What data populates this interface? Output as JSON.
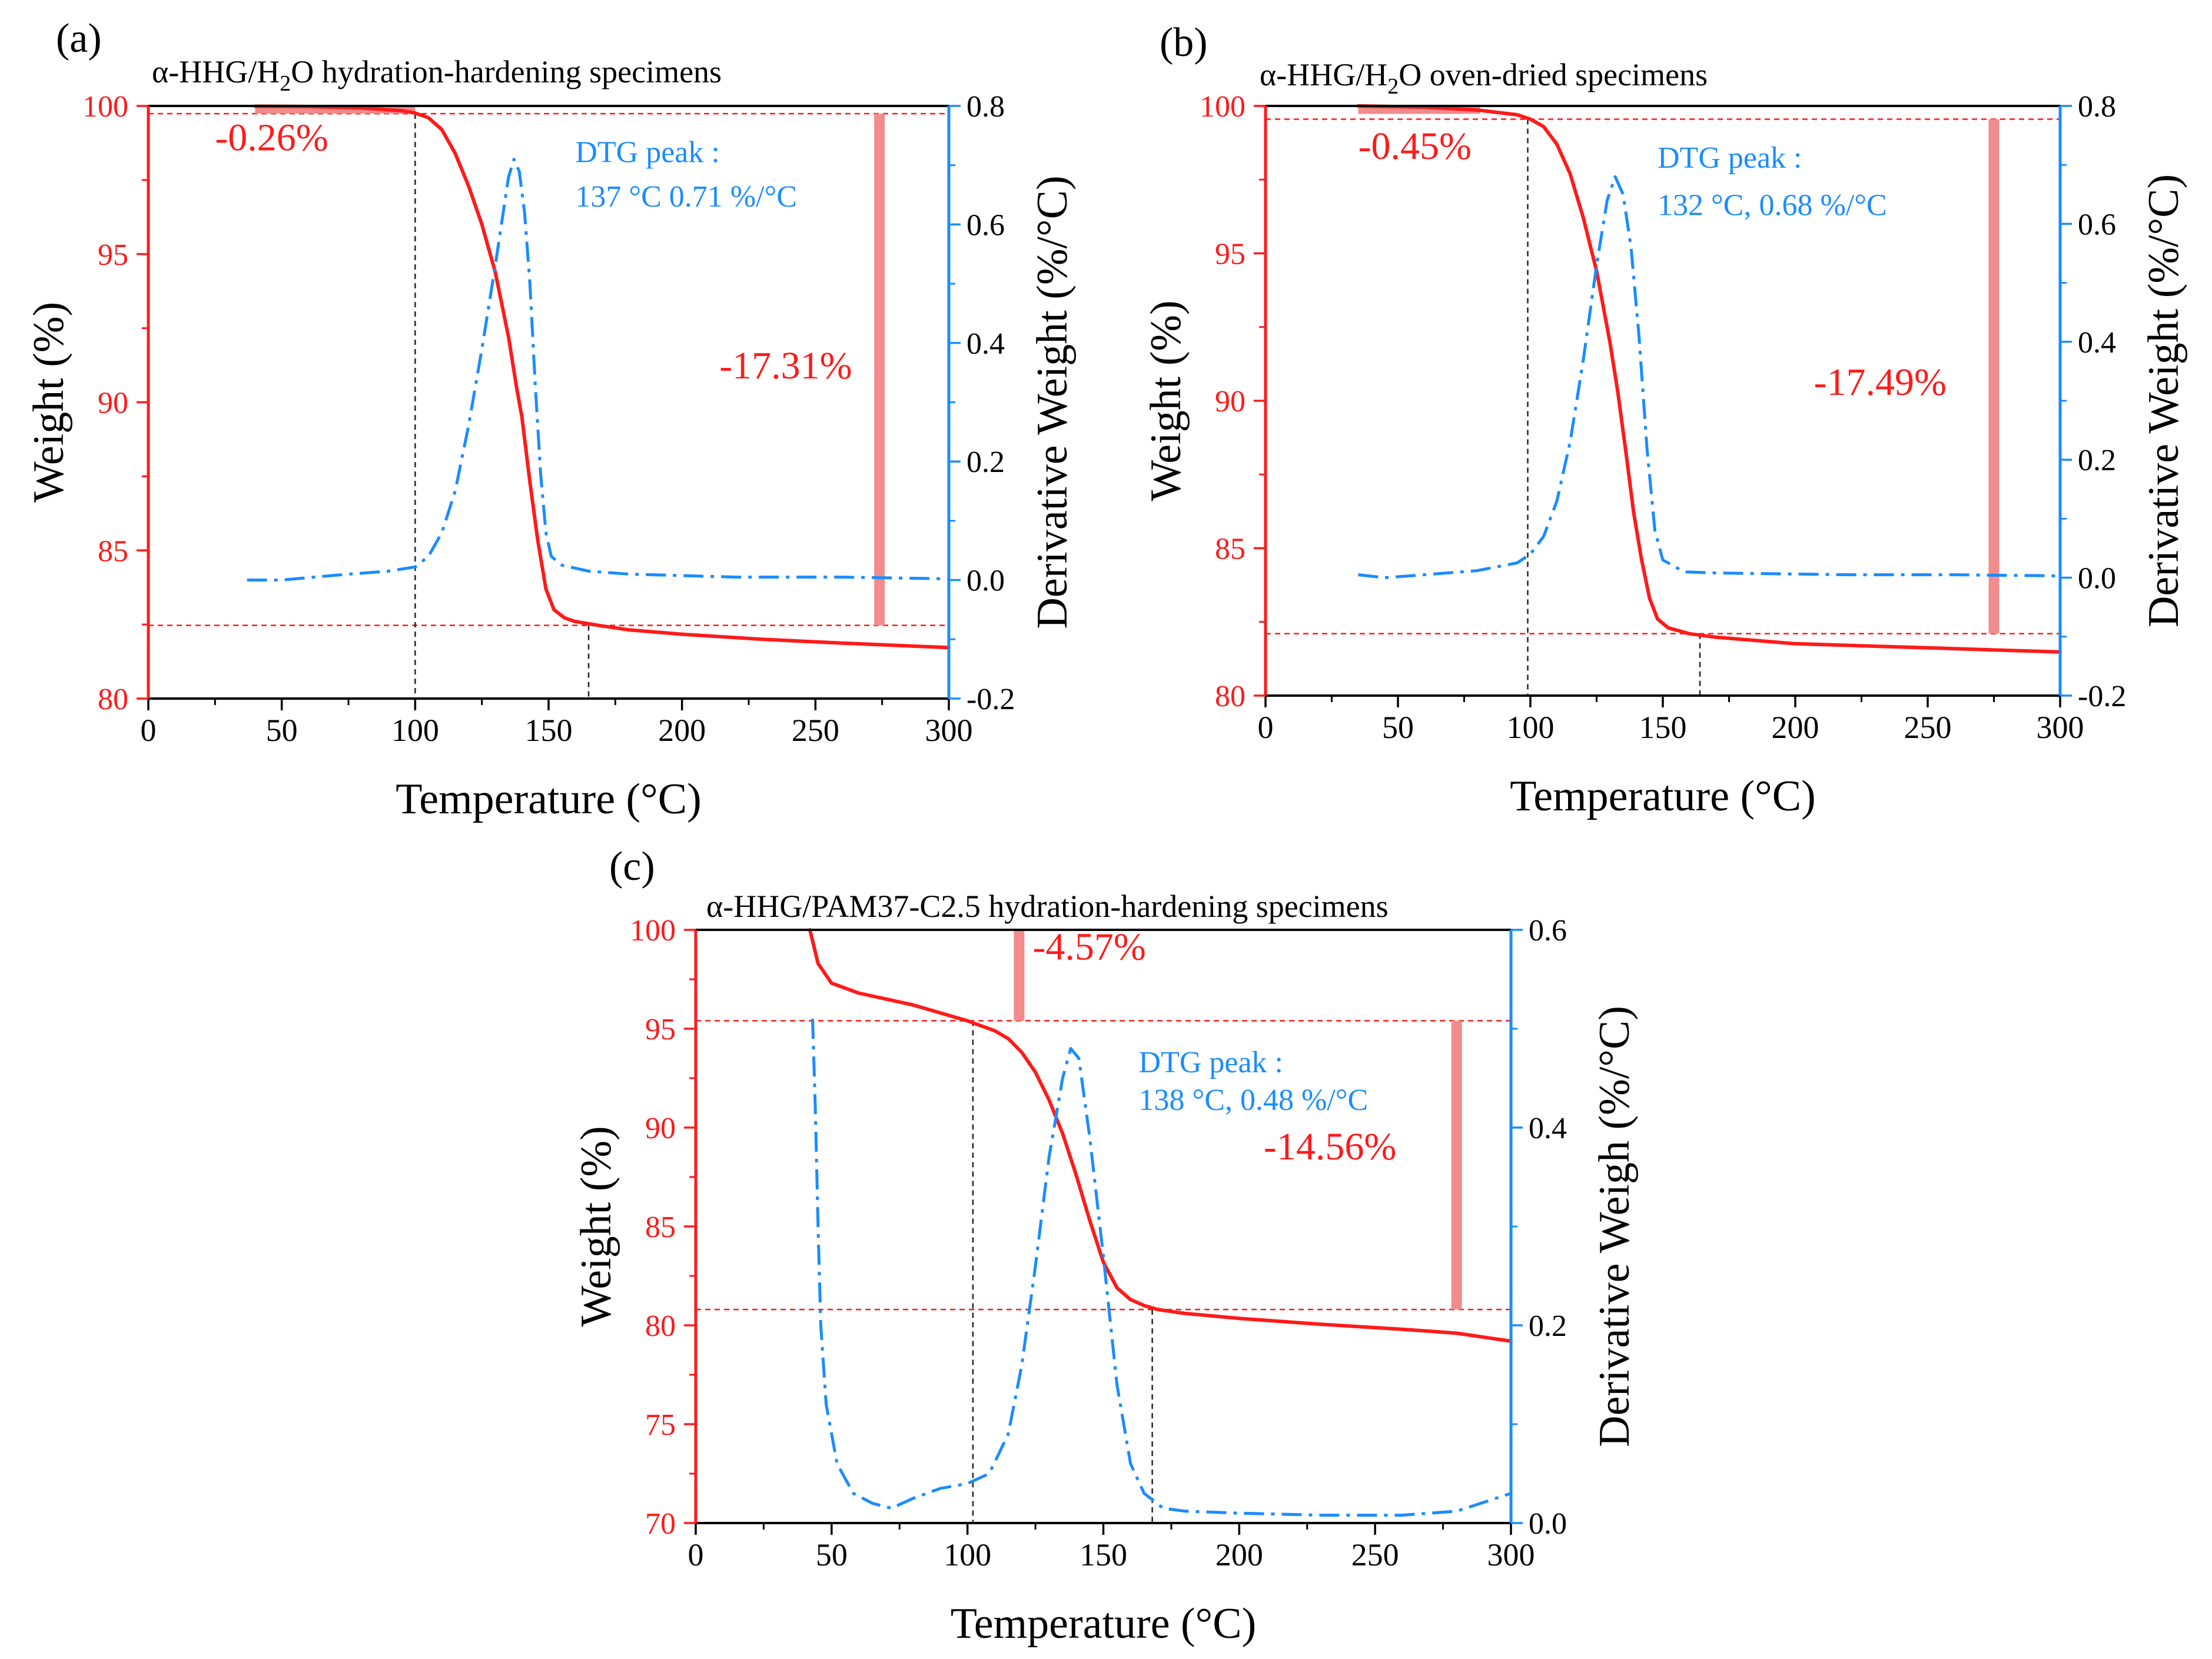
{
  "figure": {
    "colors": {
      "weight": "#ff1a1a",
      "dtg": "#1a8cff",
      "bar": "#f28b8b",
      "guide": "#222222",
      "axis": "#000000"
    }
  },
  "chart_data": [
    {
      "type": "line",
      "panel_label": "(a)",
      "title_main": "α-HHG/H",
      "title_sub": "2",
      "title_rest": "O hydration-hardening specimens",
      "xlabel": "Temperature (°C)",
      "ylabel": "Weight (%)",
      "y2label": "Derivative Weight (%/°C)",
      "xlim": [
        0,
        300
      ],
      "ylim": [
        80,
        100
      ],
      "y2lim": [
        -0.2,
        0.8
      ],
      "xticks": [
        "0",
        "50",
        "100",
        "150",
        "200",
        "250",
        "300"
      ],
      "yticks": [
        "80",
        "85",
        "90",
        "95",
        "100"
      ],
      "y2ticks": [
        "-0.2",
        "0.0",
        "0.2",
        "0.4",
        "0.6",
        "0.8"
      ],
      "series": [
        {
          "name": "Weight",
          "axis": "left",
          "style": "solid",
          "points": [
            [
              40,
              99.99
            ],
            [
              60,
              99.98
            ],
            [
              80,
              99.93
            ],
            [
              95,
              99.84
            ],
            [
              100,
              99.76
            ],
            [
              105,
              99.6
            ],
            [
              110,
              99.2
            ],
            [
              115,
              98.4
            ],
            [
              120,
              97.3
            ],
            [
              125,
              96.0
            ],
            [
              130,
              94.4
            ],
            [
              135,
              92.2
            ],
            [
              138,
              90.5
            ],
            [
              140,
              89.5
            ],
            [
              143,
              87.3
            ],
            [
              146,
              85.3
            ],
            [
              149,
              83.7
            ],
            [
              152,
              83.0
            ],
            [
              156,
              82.72
            ],
            [
              160,
              82.6
            ],
            [
              170,
              82.45
            ],
            [
              180,
              82.32
            ],
            [
              200,
              82.17
            ],
            [
              230,
              82.0
            ],
            [
              260,
              81.87
            ],
            [
              300,
              81.72
            ]
          ]
        },
        {
          "name": "DTG",
          "axis": "right",
          "style": "dashdot",
          "points": [
            [
              37,
              0.0
            ],
            [
              50,
              0.0
            ],
            [
              70,
              0.008
            ],
            [
              90,
              0.015
            ],
            [
              100,
              0.022
            ],
            [
              105,
              0.04
            ],
            [
              110,
              0.08
            ],
            [
              115,
              0.15
            ],
            [
              120,
              0.26
            ],
            [
              125,
              0.39
            ],
            [
              130,
              0.53
            ],
            [
              133,
              0.62
            ],
            [
              135,
              0.68
            ],
            [
              137,
              0.71
            ],
            [
              139,
              0.69
            ],
            [
              141,
              0.62
            ],
            [
              143,
              0.5
            ],
            [
              145,
              0.33
            ],
            [
              147,
              0.18
            ],
            [
              149,
              0.08
            ],
            [
              151,
              0.04
            ],
            [
              155,
              0.025
            ],
            [
              165,
              0.015
            ],
            [
              180,
              0.01
            ],
            [
              220,
              0.005
            ],
            [
              260,
              0.005
            ],
            [
              300,
              0.002
            ]
          ]
        }
      ],
      "guides": {
        "v_lines": [
          100,
          165
        ],
        "h_lines": [
          99.74,
          82.47
        ]
      },
      "annotations": {
        "step1": {
          "text": "-0.26%",
          "x": 25,
          "y": 98.5
        },
        "step2": {
          "text": "-17.31%",
          "x": 214,
          "y": 90.8
        },
        "peak_title": {
          "text": "DTG peak :",
          "x": 160,
          "y": 98.1
        },
        "peak_value": {
          "text": "137 °C 0.71 %/°C",
          "x": 160,
          "y": 96.6
        }
      },
      "bars": [
        {
          "x": 274,
          "y_from": 99.74,
          "y_to": 82.47
        }
      ],
      "top_mark": {
        "x_from": 40,
        "x_to": 100,
        "y": 99.86
      }
    },
    {
      "type": "line",
      "panel_label": "(b)",
      "title_main": "α-HHG/H",
      "title_sub": "2",
      "title_rest": "O oven-dried specimens",
      "xlabel": "Temperature (°C)",
      "ylabel": "Weight (%)",
      "y2label": "Derivative Weight (%/°C)",
      "xlim": [
        0,
        300
      ],
      "ylim": [
        80,
        100
      ],
      "y2lim": [
        -0.2,
        0.8
      ],
      "xticks": [
        "0",
        "50",
        "100",
        "150",
        "200",
        "250",
        "300"
      ],
      "yticks": [
        "80",
        "85",
        "90",
        "95",
        "100"
      ],
      "y2ticks": [
        "-0.2",
        "0.0",
        "0.2",
        "0.4",
        "0.6",
        "0.8"
      ],
      "series": [
        {
          "name": "Weight",
          "axis": "left",
          "style": "solid",
          "points": [
            [
              35,
              100.0
            ],
            [
              60,
              99.96
            ],
            [
              80,
              99.86
            ],
            [
              95,
              99.7
            ],
            [
              100,
              99.55
            ],
            [
              105,
              99.3
            ],
            [
              110,
              98.7
            ],
            [
              115,
              97.7
            ],
            [
              120,
              96.2
            ],
            [
              125,
              94.4
            ],
            [
              130,
              92.0
            ],
            [
              133,
              90.3
            ],
            [
              136,
              88.3
            ],
            [
              139,
              86.2
            ],
            [
              142,
              84.6
            ],
            [
              145,
              83.3
            ],
            [
              148,
              82.6
            ],
            [
              152,
              82.3
            ],
            [
              160,
              82.1
            ],
            [
              170,
              81.98
            ],
            [
              200,
              81.76
            ],
            [
              250,
              81.62
            ],
            [
              300,
              81.48
            ]
          ]
        },
        {
          "name": "DTG",
          "axis": "right",
          "style": "dashdot",
          "points": [
            [
              35,
              0.005
            ],
            [
              45,
              0.0
            ],
            [
              60,
              0.005
            ],
            [
              80,
              0.012
            ],
            [
              95,
              0.025
            ],
            [
              100,
              0.04
            ],
            [
              105,
              0.07
            ],
            [
              110,
              0.13
            ],
            [
              115,
              0.23
            ],
            [
              120,
              0.37
            ],
            [
              125,
              0.53
            ],
            [
              129,
              0.64
            ],
            [
              132,
              0.68
            ],
            [
              135,
              0.65
            ],
            [
              138,
              0.56
            ],
            [
              141,
              0.41
            ],
            [
              144,
              0.22
            ],
            [
              147,
              0.08
            ],
            [
              150,
              0.03
            ],
            [
              158,
              0.01
            ],
            [
              170,
              0.008
            ],
            [
              220,
              0.005
            ],
            [
              260,
              0.005
            ],
            [
              300,
              0.003
            ]
          ]
        }
      ],
      "guides": {
        "v_lines": [
          99,
          164
        ],
        "h_lines": [
          99.55,
          82.1
        ]
      },
      "annotations": {
        "step1": {
          "text": "-0.45%",
          "x": 35,
          "y": 98.2
        },
        "step2": {
          "text": "-17.49%",
          "x": 207,
          "y": 90.2
        },
        "peak_title": {
          "text": "DTG peak :",
          "x": 148,
          "y": 97.9
        },
        "peak_value": {
          "text": "132 °C, 0.68 %/°C",
          "x": 148,
          "y": 96.3
        }
      },
      "bars": [
        {
          "x": 275,
          "y_from": 99.55,
          "y_to": 82.1
        }
      ],
      "top_mark": {
        "x_from": 35,
        "x_to": 81,
        "y": 99.85
      }
    },
    {
      "type": "line",
      "panel_label": "(c)",
      "title_main": "α-HHG/PAM37-C2.5 hydration-hardening specimens",
      "title_sub": "",
      "title_rest": "",
      "xlabel": "Temperature (°C)",
      "ylabel": "Weight (%)",
      "y2label": "Derivative Weigh (%/°C)",
      "xlim": [
        0,
        300
      ],
      "ylim": [
        70,
        100
      ],
      "y2lim": [
        0.0,
        0.6
      ],
      "xticks": [
        "0",
        "50",
        "100",
        "150",
        "200",
        "250",
        "300"
      ],
      "yticks": [
        "70",
        "75",
        "80",
        "85",
        "90",
        "95",
        "100"
      ],
      "y2ticks": [
        "0.0",
        "0.2",
        "0.4",
        "0.6"
      ],
      "series": [
        {
          "name": "Weight",
          "axis": "left",
          "style": "solid",
          "points": [
            [
              42,
              100.0
            ],
            [
              45,
              98.3
            ],
            [
              50,
              97.3
            ],
            [
              60,
              96.8
            ],
            [
              70,
              96.5
            ],
            [
              80,
              96.2
            ],
            [
              90,
              95.8
            ],
            [
              100,
              95.4
            ],
            [
              110,
              94.9
            ],
            [
              115,
              94.5
            ],
            [
              120,
              93.8
            ],
            [
              125,
              92.8
            ],
            [
              130,
              91.4
            ],
            [
              135,
              89.7
            ],
            [
              140,
              87.6
            ],
            [
              145,
              85.3
            ],
            [
              150,
              83.2
            ],
            [
              155,
              81.9
            ],
            [
              160,
              81.3
            ],
            [
              165,
              81.0
            ],
            [
              170,
              80.8
            ],
            [
              180,
              80.6
            ],
            [
              200,
              80.35
            ],
            [
              230,
              80.05
            ],
            [
              260,
              79.8
            ],
            [
              280,
              79.6
            ],
            [
              300,
              79.2
            ]
          ]
        },
        {
          "name": "DTG",
          "axis": "right",
          "style": "dashdot",
          "points": [
            [
              43,
              0.51
            ],
            [
              44,
              0.42
            ],
            [
              45,
              0.3
            ],
            [
              46,
              0.2
            ],
            [
              48,
              0.12
            ],
            [
              52,
              0.06
            ],
            [
              58,
              0.03
            ],
            [
              65,
              0.02
            ],
            [
              72,
              0.015
            ],
            [
              80,
              0.025
            ],
            [
              90,
              0.035
            ],
            [
              100,
              0.04
            ],
            [
              108,
              0.05
            ],
            [
              115,
              0.09
            ],
            [
              120,
              0.16
            ],
            [
              125,
              0.26
            ],
            [
              130,
              0.37
            ],
            [
              135,
              0.45
            ],
            [
              138,
              0.48
            ],
            [
              141,
              0.47
            ],
            [
              145,
              0.39
            ],
            [
              150,
              0.27
            ],
            [
              155,
              0.14
            ],
            [
              160,
              0.06
            ],
            [
              165,
              0.03
            ],
            [
              172,
              0.015
            ],
            [
              180,
              0.012
            ],
            [
              200,
              0.01
            ],
            [
              230,
              0.008
            ],
            [
              260,
              0.008
            ],
            [
              280,
              0.012
            ],
            [
              300,
              0.03
            ]
          ]
        }
      ],
      "guides": {
        "v_lines": [
          102,
          168
        ],
        "h_lines": [
          95.4,
          80.8
        ]
      },
      "annotations": {
        "step1": {
          "text": "-4.57%",
          "x": 124,
          "y": 98.5
        },
        "step2": {
          "text": "-14.56%",
          "x": 209,
          "y": 88.4
        },
        "peak_title": {
          "text": "DTG peak :",
          "x": 163,
          "y": 92.8
        },
        "peak_value": {
          "text": "138 °C, 0.48 %/°C",
          "x": 163,
          "y": 90.9
        }
      },
      "bars": [
        {
          "x": 119,
          "y_from": 100,
          "y_to": 95.4
        },
        {
          "x": 280,
          "y_from": 95.4,
          "y_to": 80.8
        }
      ],
      "top_mark": null
    }
  ]
}
